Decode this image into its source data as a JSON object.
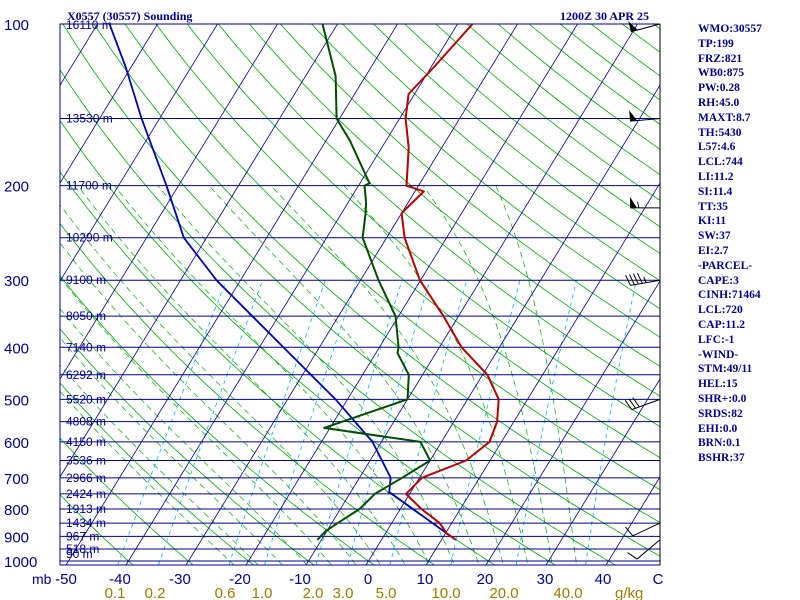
{
  "header": {
    "station": "X0557 (30557) Sounding",
    "valid_time": "1200Z 30 APR 25"
  },
  "indices": [
    "WMO:30557",
    "TP:199",
    "FRZ:821",
    "WB0:875",
    "PW:0.28",
    "RH:45.0",
    "MAXT:8.7",
    "TH:5430",
    "L57:4.6",
    "LCL:744",
    "LI:11.2",
    "SI:11.4",
    "TT:35",
    "KI:11",
    "SW:37",
    "EI:2.7",
    "-PARCEL-",
    "CAPE:3",
    "CINH:71464",
    "LCL:720",
    "CAP:11.2",
    "LFC:-1",
    "-WIND-",
    "STM:49/11",
    "HEL:15",
    "SHR+:0.0",
    "SRDS:82",
    "EHI:0.0",
    "BRN:0.1",
    "BSHR:37"
  ],
  "colors": {
    "background": "#ffffff",
    "text": "#00008b",
    "isobar": "#00008b",
    "isotherm": "#00008b",
    "dry_adiabat": "#00aa00",
    "moist_adiabat": "#00aa00",
    "mixing_ratio": "#00b4ff",
    "temperature": "#b40000",
    "dewpoint": "#004d00",
    "parcel": "#0000b4",
    "wind_barb": "#000000",
    "mixing_label": "#9a7a00"
  },
  "chart_data": {
    "type": "skew-t",
    "pressure_unit": "mb",
    "temperature_unit": "C",
    "mixing_ratio_unit": "g/kg",
    "pressure_ticks": [
      100,
      200,
      300,
      400,
      500,
      600,
      700,
      800,
      900,
      1000
    ],
    "temperature_ticks": [
      "-50",
      "-40",
      "-30",
      "-20",
      "-10",
      "0",
      "10",
      "20",
      "30",
      "40",
      "C"
    ],
    "mixing_ratio_ticks": [
      "0.1",
      "0.2",
      "0.6",
      "1.0",
      "2.0",
      "3.0",
      "5.0",
      "10.0",
      "20.0",
      "40.0"
    ],
    "height_labels": [
      {
        "p": 100,
        "label": "16110 m"
      },
      {
        "p": 150,
        "label": "13530 m"
      },
      {
        "p": 200,
        "label": "11700 m"
      },
      {
        "p": 250,
        "label": "10290 m"
      },
      {
        "p": 300,
        "label": "9100 m"
      },
      {
        "p": 350,
        "label": "8050 m"
      },
      {
        "p": 400,
        "label": "7140 m"
      },
      {
        "p": 450,
        "label": "6292 m"
      },
      {
        "p": 500,
        "label": "5520 m"
      },
      {
        "p": 550,
        "label": "4808 m"
      },
      {
        "p": 600,
        "label": "4150 m"
      },
      {
        "p": 650,
        "label": "3536 m"
      },
      {
        "p": 700,
        "label": "2966 m"
      },
      {
        "p": 750,
        "label": "2424 m"
      },
      {
        "p": 800,
        "label": "1913 m"
      },
      {
        "p": 850,
        "label": "1434 m"
      },
      {
        "p": 900,
        "label": "967 m"
      },
      {
        "p": 950,
        "label": "518 m"
      },
      {
        "p": 1000,
        "label": "90 m"
      }
    ],
    "temperature_profile": [
      [
        913,
        12.4
      ],
      [
        890,
        10.3
      ],
      [
        850,
        8.0
      ],
      [
        800,
        3.5
      ],
      [
        750,
        -0.6
      ],
      [
        700,
        0.4
      ],
      [
        650,
        6.0
      ],
      [
        600,
        8.0
      ],
      [
        550,
        7.2
      ],
      [
        500,
        5.2
      ],
      [
        450,
        0.8
      ],
      [
        400,
        -6.3
      ],
      [
        350,
        -12.5
      ],
      [
        300,
        -20.1
      ],
      [
        250,
        -27.0
      ],
      [
        225,
        -30.0
      ],
      [
        205,
        -28.5
      ],
      [
        200,
        -32.0
      ],
      [
        170,
        -35.5
      ],
      [
        150,
        -39.0
      ],
      [
        135,
        -41.0
      ],
      [
        120,
        -39.5
      ],
      [
        100,
        -37.5
      ]
    ],
    "dewpoint_profile": [
      [
        913,
        -10.7
      ],
      [
        880,
        -10.2
      ],
      [
        850,
        -9.0
      ],
      [
        800,
        -6.8
      ],
      [
        750,
        -5.8
      ],
      [
        700,
        -2.9
      ],
      [
        650,
        0.0
      ],
      [
        600,
        -3.5
      ],
      [
        565,
        -21.0
      ],
      [
        500,
        -10.0
      ],
      [
        450,
        -12.3
      ],
      [
        410,
        -16.4
      ],
      [
        400,
        -16.8
      ],
      [
        350,
        -20.5
      ],
      [
        300,
        -27.0
      ],
      [
        250,
        -34.0
      ],
      [
        225,
        -36.0
      ],
      [
        215,
        -37.0
      ],
      [
        200,
        -39.0
      ],
      [
        198,
        -38.4
      ],
      [
        165,
        -46.0
      ],
      [
        150,
        -50.5
      ],
      [
        125,
        -55.0
      ],
      [
        100,
        -62.5
      ]
    ],
    "parcel_path": [
      [
        913,
        12.4
      ],
      [
        870,
        8.6
      ],
      [
        820,
        4.0
      ],
      [
        744,
        -3.6
      ],
      [
        700,
        -4.8
      ],
      [
        600,
        -11.5
      ],
      [
        500,
        -22.0
      ],
      [
        400,
        -36.0
      ],
      [
        300,
        -54.0
      ],
      [
        250,
        -63.8
      ],
      [
        200,
        -72.0
      ],
      [
        150,
        -83.0
      ],
      [
        120,
        -91.0
      ],
      [
        100,
        -98.0
      ]
    ],
    "wind_barbs": [
      {
        "p": 913,
        "dir": 230,
        "speed_kt": 10
      },
      {
        "p": 850,
        "dir": 245,
        "speed_kt": 10
      },
      {
        "p": 500,
        "dir": 250,
        "speed_kt": 30
      },
      {
        "p": 300,
        "dir": 260,
        "speed_kt": 45
      },
      {
        "p": 220,
        "dir": 270,
        "speed_kt": 55
      },
      {
        "p": 150,
        "dir": 265,
        "speed_kt": 50
      },
      {
        "p": 100,
        "dir": 255,
        "speed_kt": 50
      }
    ]
  }
}
